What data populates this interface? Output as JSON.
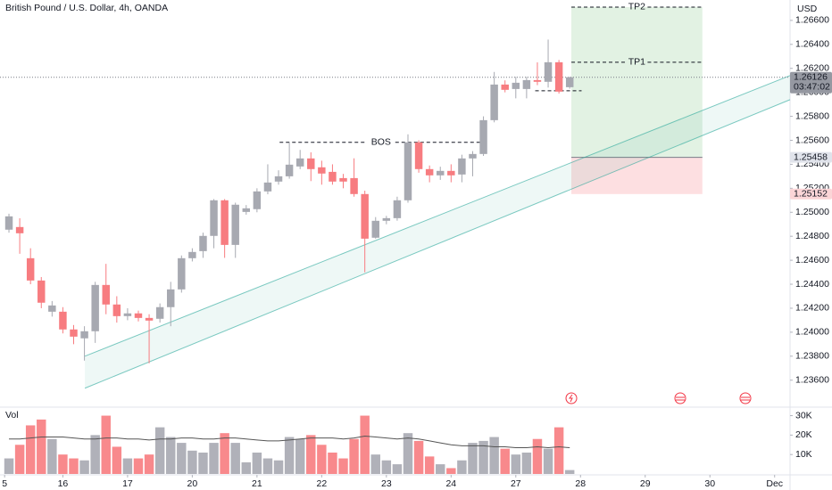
{
  "chart_data": {
    "type": "candlestick",
    "title": "British Pound / U.S. Dollar, 4h, OANDA",
    "currency": "USD",
    "volume_label": "Vol",
    "x": [
      0,
      1,
      2,
      3,
      4,
      5,
      6,
      7,
      8,
      9,
      10,
      11,
      12,
      13,
      14,
      15,
      16,
      17,
      18,
      19,
      20,
      21,
      22,
      23,
      24,
      25,
      26,
      27,
      28,
      29,
      30,
      31,
      32,
      33,
      34,
      35,
      36,
      37,
      38,
      39,
      40,
      41,
      42,
      43,
      44,
      45,
      46,
      47,
      48,
      49,
      50,
      51,
      52
    ],
    "open": [
      1.24855,
      1.24877,
      1.24617,
      1.24431,
      1.24171,
      1.24171,
      1.24023,
      1.23949,
      1.24008,
      1.24394,
      1.24231,
      1.24134,
      1.24157,
      1.24119,
      1.24112,
      1.24209,
      1.24357,
      1.24617,
      1.24676,
      1.24803,
      1.251,
      1.24728,
      1.25003,
      1.25026,
      1.25174,
      1.25256,
      1.253,
      1.25382,
      1.25449,
      1.25375,
      1.25337,
      1.25285,
      1.25285,
      1.25152,
      1.24788,
      1.24929,
      1.24951,
      1.251,
      1.25583,
      1.2536,
      1.25308,
      1.25345,
      1.25315,
      1.25449,
      1.25486,
      1.25768,
      1.26065,
      1.26028,
      1.26028,
      1.26102,
      1.26088,
      1.26251,
      1.26043
    ],
    "high": [
      1.24988,
      1.2495,
      1.247,
      1.2446,
      1.2426,
      1.24209,
      1.2406,
      1.2405,
      1.2442,
      1.2457,
      1.243,
      1.242,
      1.2418,
      1.2415,
      1.2424,
      1.2442,
      1.2464,
      1.247,
      1.2483,
      1.2511,
      1.2511,
      1.2508,
      1.2506,
      1.252,
      1.254,
      1.2535,
      1.2558,
      1.2552,
      1.255,
      1.2543,
      1.254,
      1.2532,
      1.2545,
      1.2518,
      1.2496,
      1.2497,
      1.2513,
      1.2565,
      1.256,
      1.2539,
      1.2538,
      1.254,
      1.2548,
      1.2551,
      1.258,
      1.2617,
      1.261,
      1.2613,
      1.2613,
      1.2625,
      1.2644,
      1.2627,
      1.2613
    ],
    "low": [
      1.2483,
      1.24654,
      1.244,
      1.242,
      1.2413,
      1.2399,
      1.239,
      1.23763,
      1.23911,
      1.2415,
      1.2408,
      1.241,
      1.2409,
      1.23741,
      1.2408,
      1.2405,
      1.2433,
      1.2459,
      1.2462,
      1.247,
      1.2462,
      1.2462,
      1.2498,
      1.25,
      1.2515,
      1.2523,
      1.2528,
      1.2536,
      1.2526,
      1.2523,
      1.2523,
      1.252,
      1.2513,
      1.245,
      1.2478,
      1.249,
      1.2493,
      1.2508,
      1.2533,
      1.2525,
      1.2527,
      1.2525,
      1.2525,
      1.253,
      1.2547,
      1.2575,
      1.26,
      1.2595,
      1.2595,
      1.2606,
      1.2604,
      1.2599,
      1.2603
    ],
    "close": [
      1.24966,
      1.24825,
      1.24431,
      1.24246,
      1.24223,
      1.24023,
      1.23963,
      1.24008,
      1.24394,
      1.24231,
      1.24134,
      1.24157,
      1.24119,
      1.24097,
      1.24209,
      1.24357,
      1.24617,
      1.24669,
      1.24803,
      1.251,
      1.24728,
      1.25063,
      1.25033,
      1.25174,
      1.25248,
      1.253,
      1.25397,
      1.25449,
      1.2536,
      1.25323,
      1.25256,
      1.25256,
      1.25152,
      1.2478,
      1.24929,
      1.24951,
      1.251,
      1.25583,
      1.2536,
      1.25308,
      1.25345,
      1.25308,
      1.25449,
      1.25486,
      1.25768,
      1.26065,
      1.26021,
      1.2608,
      1.26102,
      1.26088,
      1.26251,
      1.26006,
      1.26126
    ],
    "volume": [
      8000,
      15000,
      25000,
      28000,
      18000,
      10000,
      8000,
      7000,
      20000,
      30000,
      14000,
      8000,
      8000,
      10000,
      24000,
      19000,
      16000,
      12000,
      11000,
      16000,
      21000,
      16000,
      6000,
      11000,
      8000,
      7000,
      19000,
      18000,
      20000,
      15000,
      11000,
      8000,
      18000,
      30000,
      10000,
      7000,
      5000,
      21000,
      17000,
      9000,
      5000,
      3000,
      7000,
      16000,
      17000,
      19000,
      13000,
      10000,
      11000,
      18000,
      13000,
      24000,
      2000
    ],
    "volume_ma": [
      18000,
      18000,
      18500,
      19000,
      19000,
      19000,
      18500,
      18000,
      18000,
      18500,
      18500,
      18000,
      18000,
      17500,
      18000,
      18000,
      18500,
      18500,
      18000,
      18000,
      18500,
      18500,
      18000,
      17500,
      17000,
      17000,
      17500,
      18000,
      18500,
      18500,
      18500,
      18000,
      18500,
      19500,
      19000,
      18500,
      18000,
      18500,
      18000,
      17000,
      16000,
      15000,
      14500,
      14500,
      14500,
      14000,
      14000,
      13500,
      13500,
      14000,
      13500,
      14000,
      13500
    ],
    "up_color": "#a7a9b1",
    "down_color": "#f77c80",
    "xlim": [
      -0.83,
      72.43
    ],
    "ylim": [
      1.2339,
      1.2677
    ],
    "vlim": [
      0,
      33000
    ],
    "yticks": [
      {
        "value": 1.236,
        "label": "1.23600"
      },
      {
        "value": 1.238,
        "label": "1.23800"
      },
      {
        "value": 1.24,
        "label": "1.24000"
      },
      {
        "value": 1.242,
        "label": "1.24200"
      },
      {
        "value": 1.244,
        "label": "1.24400"
      },
      {
        "value": 1.246,
        "label": "1.24600"
      },
      {
        "value": 1.248,
        "label": "1.24800"
      },
      {
        "value": 1.25,
        "label": "1.25000"
      },
      {
        "value": 1.252,
        "label": "1.25200"
      },
      {
        "value": 1.254,
        "label": "1.25400"
      },
      {
        "value": 1.256,
        "label": "1.25600"
      },
      {
        "value": 1.258,
        "label": "1.25800"
      },
      {
        "value": 1.26,
        "label": "1.26000"
      },
      {
        "value": 1.262,
        "label": "1.26200"
      },
      {
        "value": 1.264,
        "label": "1.26400"
      },
      {
        "value": 1.266,
        "label": "1.26600"
      }
    ],
    "vticks": [
      {
        "value": 10000,
        "label": "10K"
      },
      {
        "value": 20000,
        "label": "20K"
      },
      {
        "value": 30000,
        "label": "30K"
      }
    ],
    "xticks": [
      {
        "value": -0.4,
        "label": "5"
      },
      {
        "value": 5,
        "label": "16"
      },
      {
        "value": 11,
        "label": "17"
      },
      {
        "value": 17,
        "label": "20"
      },
      {
        "value": 23,
        "label": "21"
      },
      {
        "value": 29,
        "label": "22"
      },
      {
        "value": 35,
        "label": "23"
      },
      {
        "value": 41,
        "label": "24"
      },
      {
        "value": 47,
        "label": "27"
      },
      {
        "value": 53,
        "label": "28"
      },
      {
        "value": 59,
        "label": "29"
      },
      {
        "value": 65,
        "label": "30"
      },
      {
        "value": 71,
        "label": "Dec"
      }
    ],
    "bos": {
      "label": "BOS",
      "value": 1.25583,
      "x": [
        25.1,
        43.9
      ]
    },
    "tp1": {
      "label": "TP1",
      "value": 1.26251
    },
    "tp2": {
      "label": "TP2",
      "value": 1.26711
    },
    "entry": 1.25458,
    "stop": 1.25152,
    "position_x": [
      52.15,
      64.3
    ],
    "level": {
      "value": 1.26013,
      "x": [
        48.8,
        53.1
      ]
    },
    "channel": {
      "x": [
        7.04,
        72.43
      ],
      "upper": [
        1.238,
        1.2614
      ],
      "lower": [
        1.23533,
        1.25939
      ]
    },
    "current_price": 1.26126,
    "countdown": "03:47:02"
  }
}
